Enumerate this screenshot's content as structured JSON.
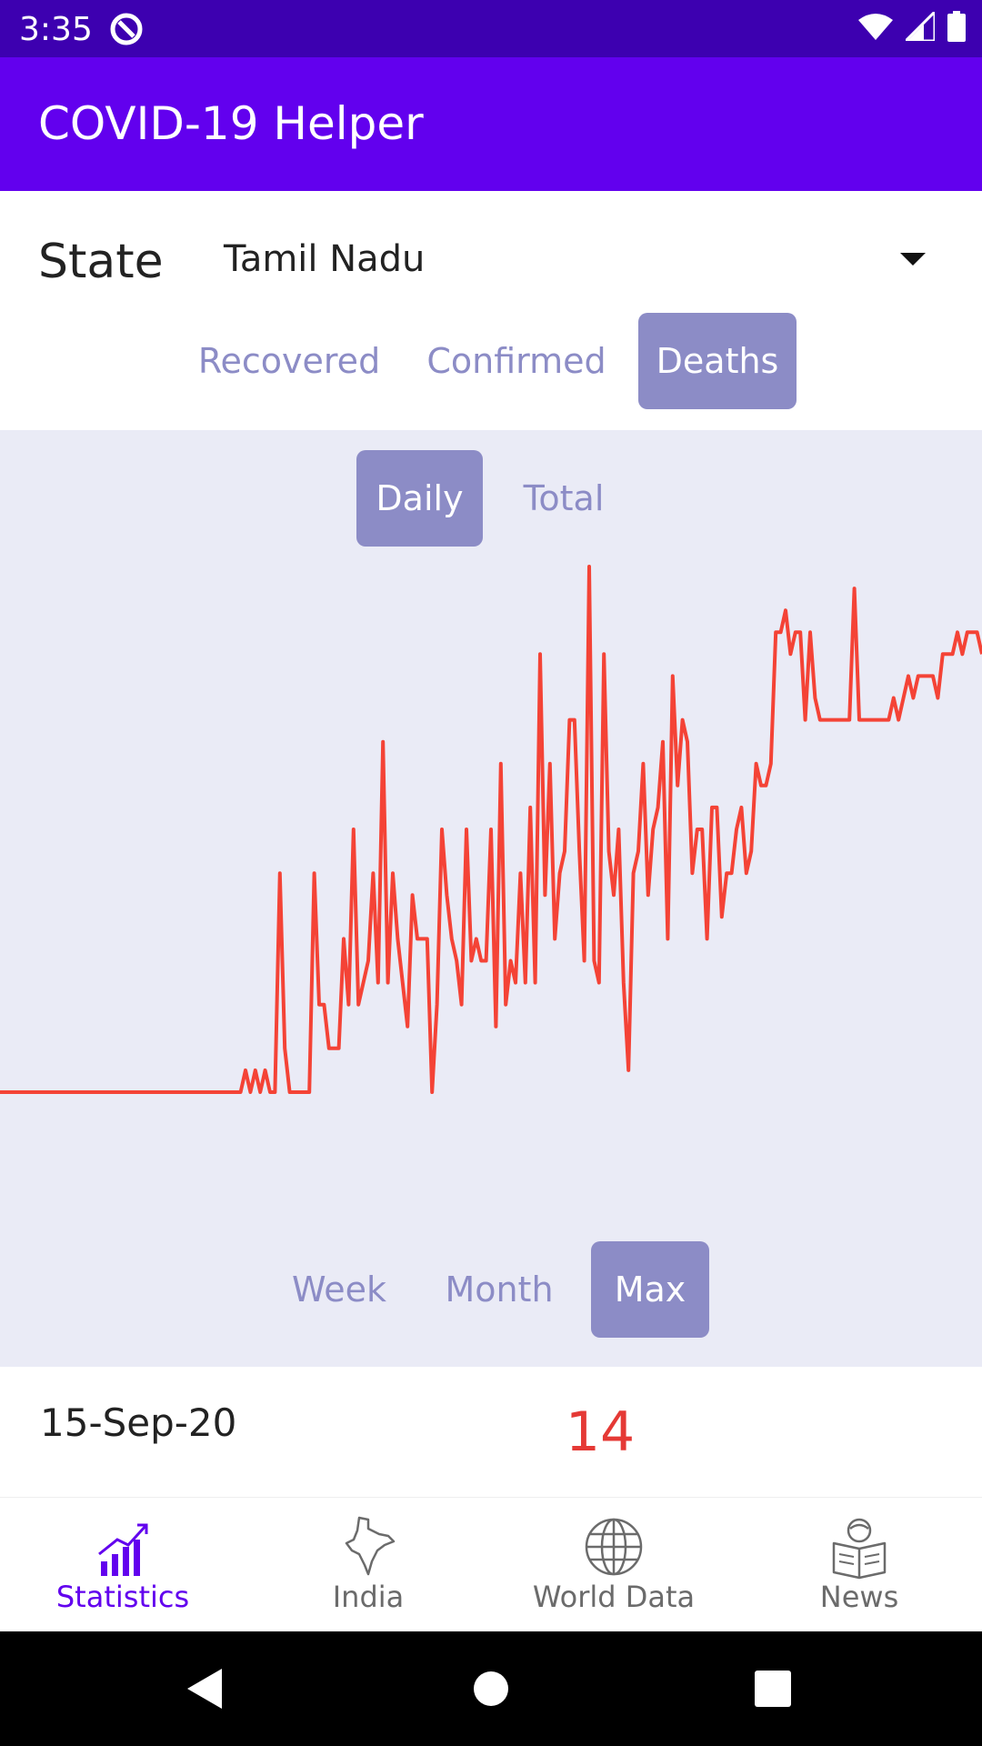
{
  "status_bar": {
    "time": "3:35"
  },
  "app_bar": {
    "title": "COVID-19 Helper"
  },
  "state_selector": {
    "label": "State",
    "selected": "Tamil Nadu"
  },
  "metric_tabs": [
    {
      "label": "Recovered",
      "active": false
    },
    {
      "label": "Confirmed",
      "active": false
    },
    {
      "label": "Deaths",
      "active": true
    }
  ],
  "mode_tabs": [
    {
      "label": "Daily",
      "active": true
    },
    {
      "label": "Total",
      "active": false
    }
  ],
  "range_tabs": [
    {
      "label": "Week",
      "active": false
    },
    {
      "label": "Month",
      "active": false
    },
    {
      "label": "Max",
      "active": true
    }
  ],
  "reading": {
    "date": "15-Sep-20",
    "value": "14"
  },
  "chart_data": {
    "type": "line",
    "series": [
      {
        "color": "#f44336",
        "values": [
          0,
          0,
          0,
          0,
          0,
          0,
          0,
          0,
          0,
          0,
          0,
          0,
          0,
          0,
          0,
          0,
          0,
          0,
          0,
          0,
          0,
          0,
          0,
          0,
          0,
          0,
          0,
          0,
          0,
          0,
          0,
          0,
          0,
          0,
          0,
          0,
          0,
          0,
          0,
          0,
          0,
          0,
          0,
          0,
          0,
          0,
          0,
          0,
          0,
          0,
          1,
          0,
          1,
          0,
          1,
          0,
          0,
          10,
          2,
          0,
          0,
          0,
          0,
          0,
          10,
          4,
          4,
          2,
          2,
          2,
          7,
          4,
          12,
          4,
          5,
          6,
          10,
          5,
          16,
          5,
          10,
          7,
          5,
          3,
          9,
          7,
          7,
          7,
          0,
          4,
          12,
          9,
          7,
          6,
          4,
          12,
          6,
          7,
          6,
          6,
          12,
          3,
          15,
          4,
          6,
          5,
          10,
          5,
          13,
          5,
          20,
          9,
          15,
          7,
          10,
          11,
          17,
          17,
          11,
          6,
          24,
          6,
          5,
          20,
          11,
          9,
          12,
          5,
          1,
          10,
          11,
          15,
          9,
          12,
          13,
          16,
          7,
          19,
          14,
          17,
          16,
          10,
          12,
          12,
          7,
          13,
          13,
          8,
          10,
          10,
          12,
          13,
          10,
          11,
          15,
          14,
          14,
          15,
          21,
          21,
          22,
          20,
          21,
          21,
          17,
          21,
          18,
          17,
          17,
          17,
          17,
          17,
          17,
          17,
          23,
          17,
          17,
          17,
          17,
          17,
          17,
          17,
          18,
          17,
          18,
          19,
          18,
          19,
          19,
          19,
          19,
          18,
          20,
          20,
          20,
          21,
          20,
          21,
          21,
          21,
          20
        ]
      }
    ]
  },
  "nav": [
    {
      "label": "Statistics",
      "icon": "statistics-icon",
      "active": true
    },
    {
      "label": "India",
      "icon": "india-map-icon",
      "active": false
    },
    {
      "label": "World Data",
      "icon": "globe-icon",
      "active": false
    },
    {
      "label": "News",
      "icon": "news-reader-icon",
      "active": false
    }
  ],
  "colors": {
    "primary": "#6200ee",
    "status_bar": "#3d00b0",
    "accent_tab": "#8c8cc6",
    "line": "#f44336",
    "chart_bg": "#eaebf6"
  }
}
